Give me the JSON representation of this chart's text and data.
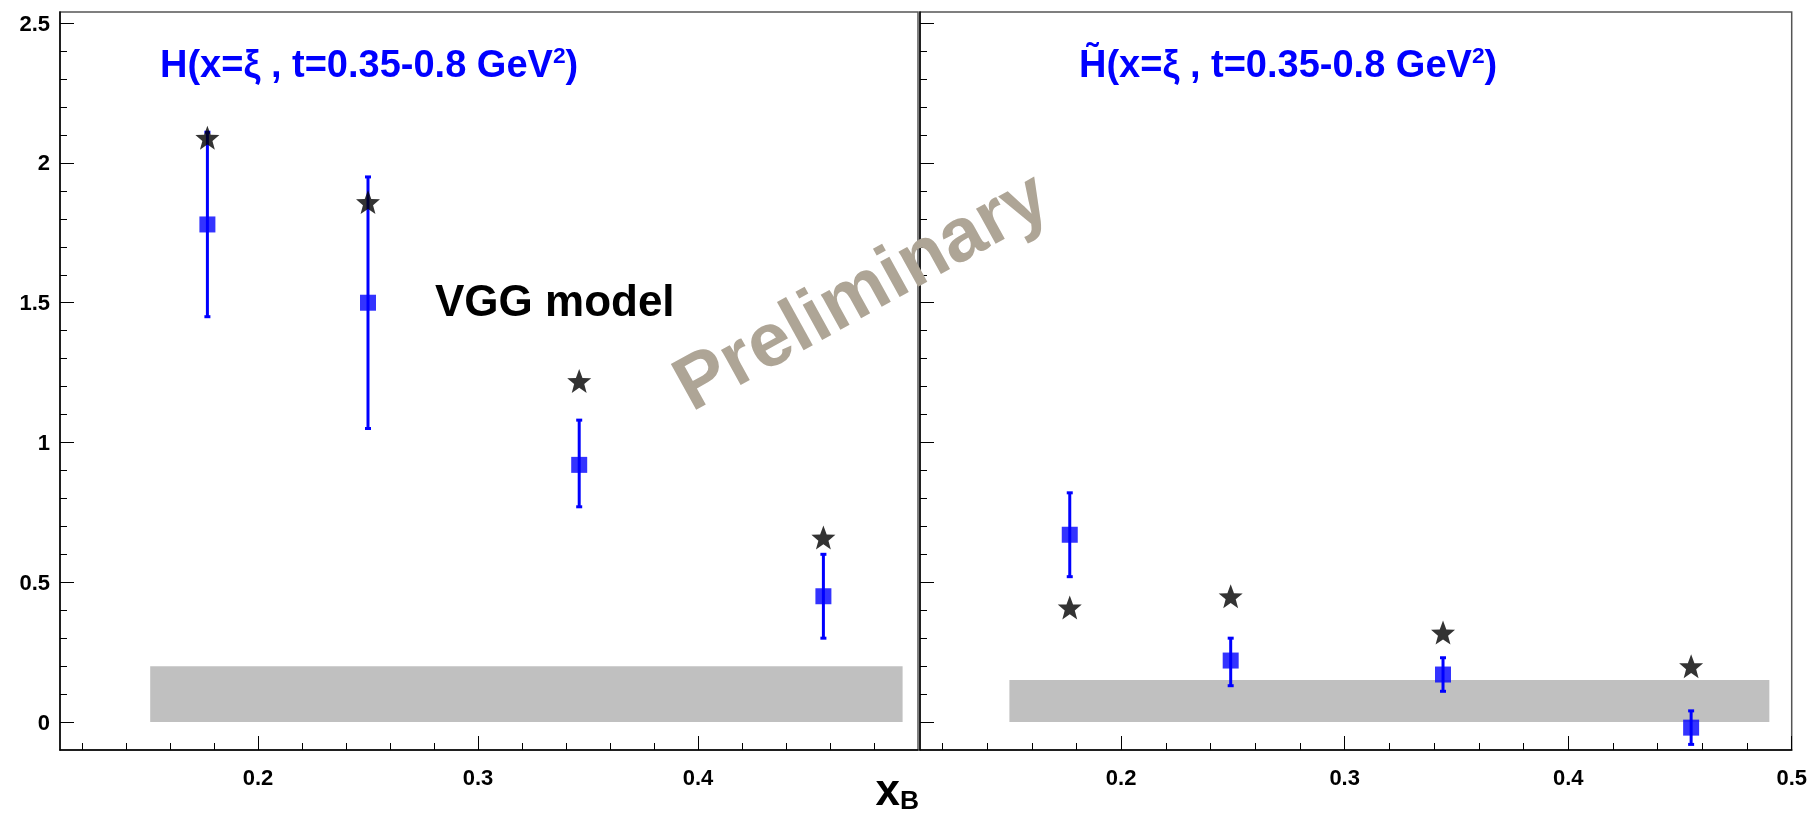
{
  "chart_data": [
    {
      "type": "scatter",
      "title": "H(x=ξ , t=0.35-0.8 GeV$^{2}$)",
      "xlabel": "x$_{B}$",
      "annotations": [
        "VGG model",
        "Preliminary"
      ],
      "xlim": [
        0.11,
        0.5
      ],
      "xticks": [
        0.2,
        0.3,
        0.4
      ],
      "ylim": [
        -0.1,
        2.54
      ],
      "yticks": [
        0,
        0.5,
        1,
        1.5,
        2,
        2.5
      ],
      "grid": false,
      "series": [
        {
          "type": "area",
          "color": "#c0c0c0",
          "x": [
            0.151,
            0.493
          ],
          "values": [
            0.2,
            0.2
          ]
        },
        {
          "color": "#000000",
          "marker": "star",
          "x": [
            0.177,
            0.25,
            0.346,
            0.457
          ],
          "values": [
            2.09,
            1.86,
            1.22,
            0.66
          ]
        },
        {
          "color": "#0000ff",
          "marker": "square",
          "x": [
            0.177,
            0.25,
            0.346,
            0.457
          ],
          "values": [
            1.78,
            1.5,
            0.92,
            0.45
          ],
          "errors": [
            [
              1.45,
              2.11
            ],
            [
              1.05,
              1.95
            ],
            [
              0.77,
              1.08
            ],
            [
              0.3,
              0.6
            ]
          ]
        }
      ]
    },
    {
      "type": "scatter",
      "title": "H̃(x=ξ , t=0.35-0.8 GeV$^{2}$)",
      "xlim": [
        0.11,
        0.5
      ],
      "xticks": [
        0.2,
        0.3,
        0.4,
        0.5
      ],
      "ylim": [
        -0.1,
        2.54
      ],
      "yticks": [
        0,
        0.5,
        1,
        1.5,
        2,
        2.5
      ],
      "tick_labels": "x",
      "grid": false,
      "series": [
        {
          "type": "area",
          "color": "#c0c0c0",
          "x": [
            0.15,
            0.49
          ],
          "values": [
            0.15,
            0.15
          ]
        },
        {
          "color": "#000000",
          "marker": "star",
          "x": [
            0.177,
            0.249,
            0.344,
            0.455
          ],
          "values": [
            0.41,
            0.45,
            0.32,
            0.2
          ]
        },
        {
          "color": "#0000ff",
          "marker": "square",
          "x": [
            0.177,
            0.249,
            0.344,
            0.455
          ],
          "values": [
            0.67,
            0.22,
            0.17,
            -0.02
          ],
          "errors": [
            [
              0.52,
              0.82
            ],
            [
              0.13,
              0.3
            ],
            [
              0.11,
              0.23
            ],
            [
              -0.08,
              0.04
            ]
          ]
        }
      ]
    }
  ]
}
